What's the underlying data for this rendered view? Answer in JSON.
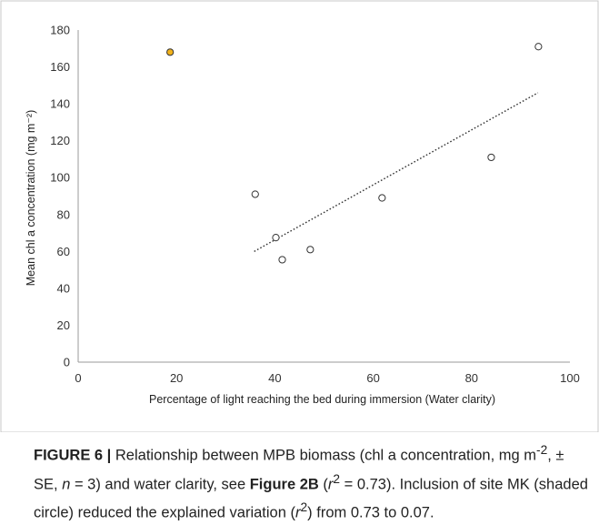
{
  "chart_data": {
    "type": "scatter",
    "title": "",
    "xlabel": "Percentage of light reaching the bed during immersion (Water clarity)",
    "ylabel": "Mean chl a concentration (mg m⁻²)",
    "xlim": [
      0,
      100
    ],
    "ylim": [
      0,
      180
    ],
    "xticks": [
      "0",
      "20",
      "40",
      "60",
      "80",
      "100"
    ],
    "yticks": [
      "0",
      "20",
      "40",
      "60",
      "80",
      "100",
      "120",
      "140",
      "160",
      "180"
    ],
    "grid": false,
    "points": [
      {
        "x": 18.7,
        "y": 168,
        "shaded": true
      },
      {
        "x": 36.0,
        "y": 91,
        "shaded": false
      },
      {
        "x": 40.2,
        "y": 67.5,
        "shaded": false
      },
      {
        "x": 41.5,
        "y": 55.5,
        "shaded": false
      },
      {
        "x": 47.2,
        "y": 61,
        "shaded": false
      },
      {
        "x": 61.8,
        "y": 89,
        "shaded": false
      },
      {
        "x": 84.0,
        "y": 111,
        "shaded": false
      },
      {
        "x": 93.6,
        "y": 171,
        "shaded": false
      }
    ],
    "trendline": {
      "x": [
        35.8,
        93.5
      ],
      "y": [
        60,
        146
      ]
    },
    "colors": {
      "shaded": "#f2b21b",
      "open": "#ffffff",
      "trendline": "#333333"
    }
  },
  "caption": {
    "figure_label": "FIGURE 6 |",
    "text_1": " Relationship between MPB biomass (chl a concentration, mg m",
    "sup_1": "-2",
    "text_2": ", ± SE, ",
    "n_symbol": "n",
    "text_3": " = 3) and water clarity, see ",
    "figure_ref": "Figure 2B",
    "text_4": " (",
    "r_symbol_1": "r",
    "sup_2": "2",
    "text_5": " = 0.73). Inclusion of site MK (shaded circle) reduced the explained variation (",
    "r_symbol_2": "r",
    "sup_3": "2",
    "text_6": ") from 0.73 to 0.07."
  }
}
